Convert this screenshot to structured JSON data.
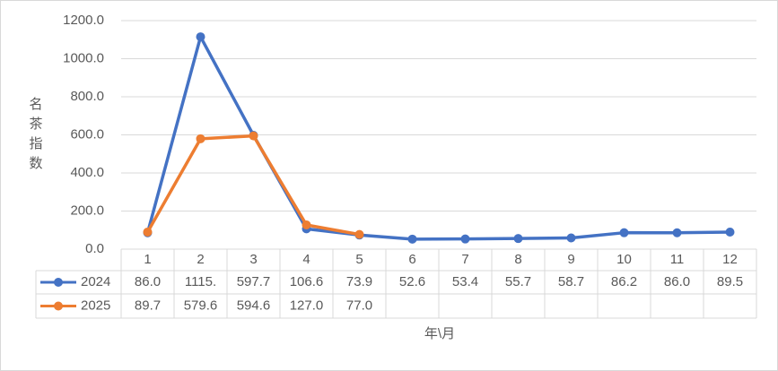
{
  "chart_data": {
    "type": "line",
    "ylabel": "名茶指数",
    "xlabel": "年\\月",
    "categories": [
      "1",
      "2",
      "3",
      "4",
      "5",
      "6",
      "7",
      "8",
      "9",
      "10",
      "11",
      "12"
    ],
    "series": [
      {
        "name": "2024",
        "color": "#4472c4",
        "values": [
          86.0,
          1115,
          597.7,
          106.6,
          73.9,
          52.6,
          53.4,
          55.7,
          58.7,
          86.2,
          86.0,
          89.5
        ],
        "value_labels": [
          "86.0",
          "1115.",
          "597.7",
          "106.6",
          "73.9",
          "52.6",
          "53.4",
          "55.7",
          "58.7",
          "86.2",
          "86.0",
          "89.5"
        ]
      },
      {
        "name": "2025",
        "color": "#ed7d31",
        "values": [
          89.7,
          579.6,
          594.6,
          127.0,
          77.0,
          null,
          null,
          null,
          null,
          null,
          null,
          null
        ],
        "value_labels": [
          "89.7",
          "579.6",
          "594.6",
          "127.0",
          "77.0",
          null,
          null,
          null,
          null,
          null,
          null,
          null
        ]
      }
    ],
    "ylim": [
      0,
      1200
    ],
    "yticks": [
      {
        "value": 0,
        "label": "0.0"
      },
      {
        "value": 200,
        "label": "200.0"
      },
      {
        "value": 400,
        "label": "400.0"
      },
      {
        "value": 600,
        "label": "600.0"
      },
      {
        "value": 800,
        "label": "800.0"
      },
      {
        "value": 1000,
        "label": "1000.0"
      },
      {
        "value": 1200,
        "label": "1200.0"
      }
    ],
    "grid": true
  }
}
